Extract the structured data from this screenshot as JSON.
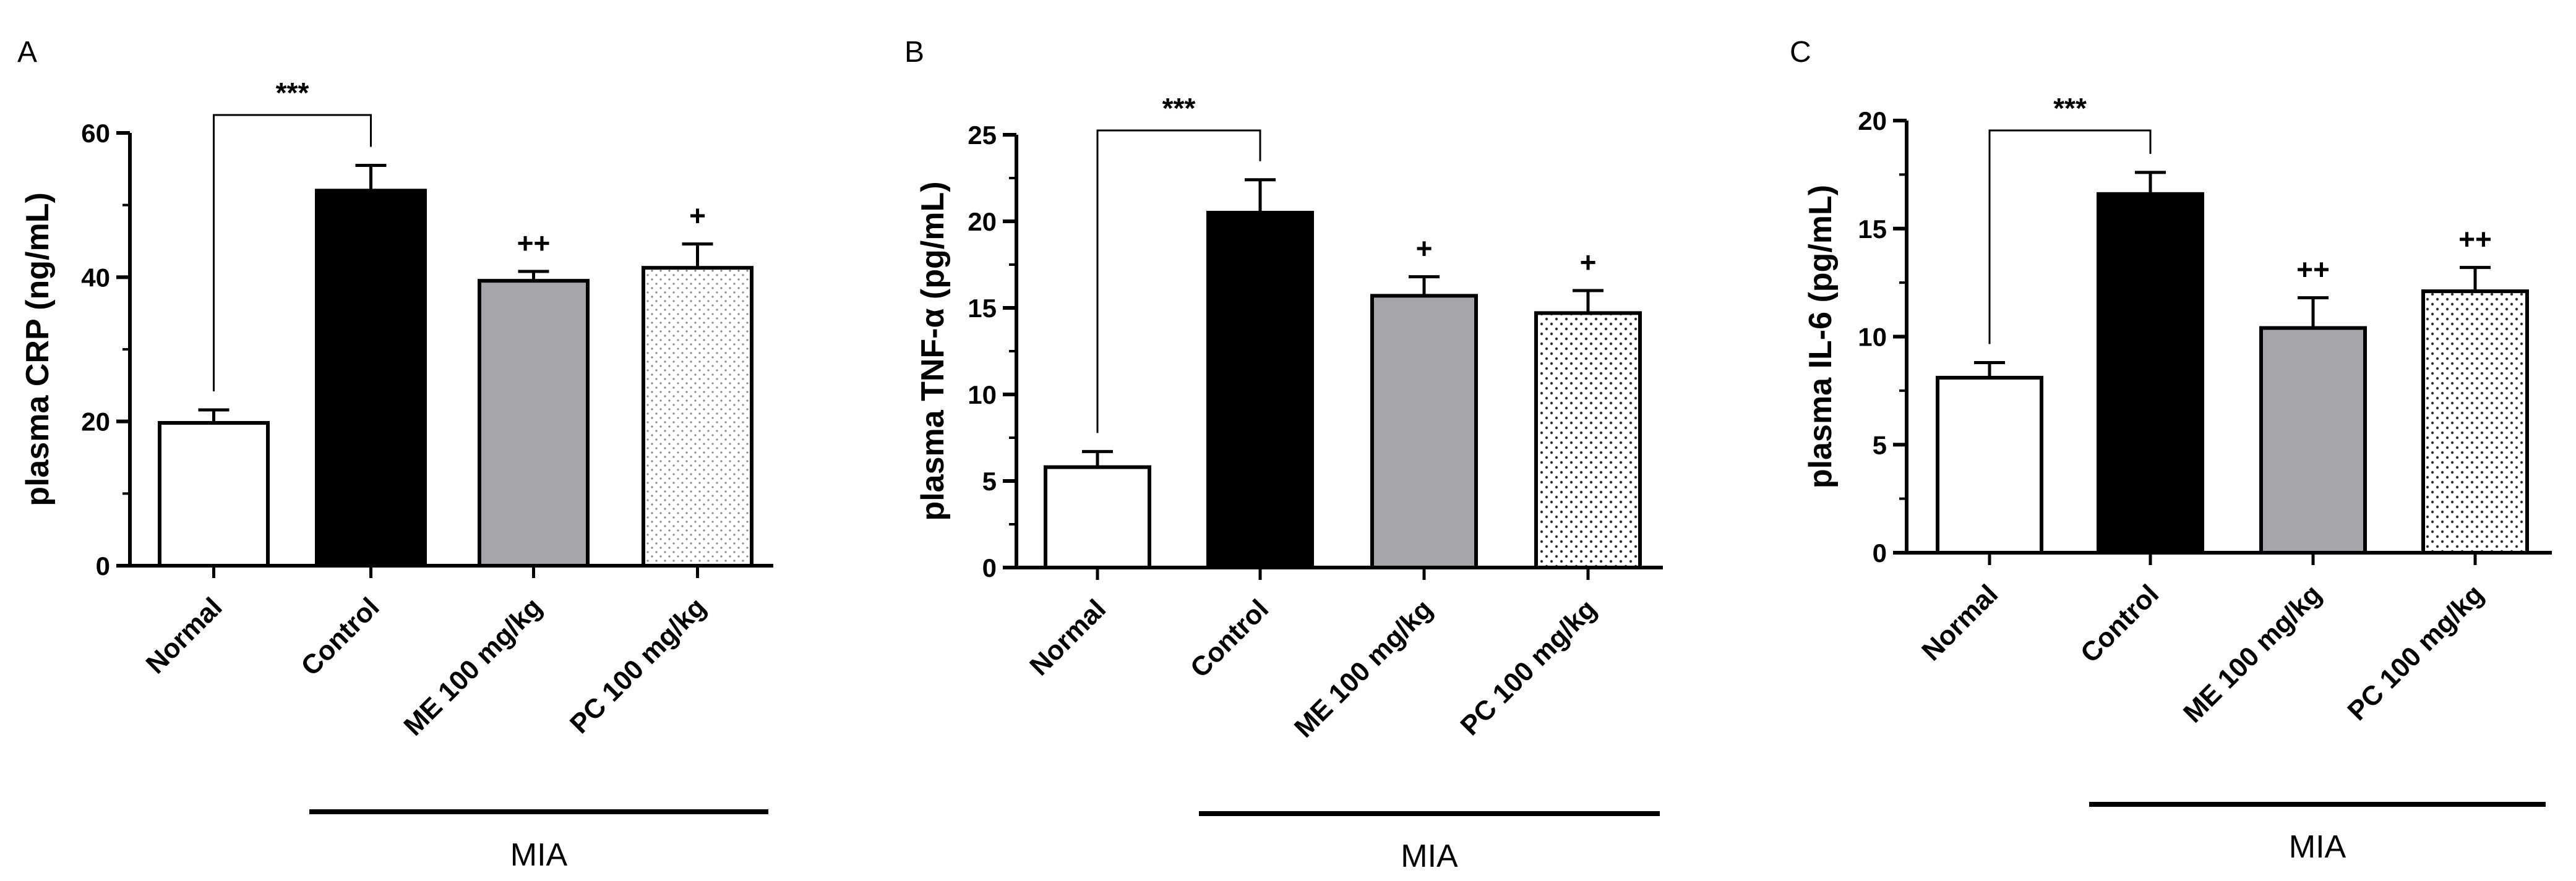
{
  "chart_data": [
    {
      "type": "bar",
      "panel": "A",
      "ylabel": "plasma CRP (ng/mL)",
      "ylim": [
        0,
        60
      ],
      "yticks": [
        0,
        20,
        40,
        60
      ],
      "categories": [
        "Normal",
        "Control",
        "ME 100 mg/kg",
        "PC 100 mg/kg"
      ],
      "values": [
        19.8,
        52.0,
        39.5,
        41.3
      ],
      "errors": [
        1.8,
        3.5,
        1.3,
        3.3
      ],
      "fills": [
        "white",
        "black",
        "gray",
        "dots"
      ],
      "significance": {
        "comparison": [
          "Normal",
          "Control"
        ],
        "label": "***"
      },
      "annotations": [
        "",
        "",
        "++",
        "+"
      ],
      "group": {
        "label": "MIA",
        "categories": [
          "Control",
          "ME 100 mg/kg",
          "PC 100 mg/kg"
        ]
      },
      "grid": false
    },
    {
      "type": "bar",
      "panel": "B",
      "ylabel": "plasma TNF-α (pg/mL)",
      "ylim": [
        0,
        25
      ],
      "yticks": [
        0,
        5,
        10,
        15,
        20,
        25
      ],
      "categories": [
        "Normal",
        "Control",
        "ME 100 mg/kg",
        "PC 100 mg/kg"
      ],
      "values": [
        5.8,
        20.5,
        15.7,
        14.7
      ],
      "errors": [
        0.9,
        1.9,
        1.1,
        1.3
      ],
      "fills": [
        "white",
        "black",
        "gray",
        "dots"
      ],
      "significance": {
        "comparison": [
          "Normal",
          "Control"
        ],
        "label": "***"
      },
      "annotations": [
        "",
        "",
        "+",
        "+"
      ],
      "group": {
        "label": "MIA",
        "categories": [
          "Control",
          "ME 100 mg/kg",
          "PC 100 mg/kg"
        ]
      },
      "grid": false
    },
    {
      "type": "bar",
      "panel": "C",
      "ylabel": "plasma IL-6 (pg/mL)",
      "ylim": [
        0,
        20
      ],
      "yticks": [
        0,
        5,
        10,
        15,
        20
      ],
      "categories": [
        "Normal",
        "Control",
        "ME 100 mg/kg",
        "PC 100 mg/kg"
      ],
      "values": [
        8.1,
        16.6,
        10.4,
        12.1
      ],
      "errors": [
        0.7,
        1.0,
        1.4,
        1.1
      ],
      "fills": [
        "white",
        "black",
        "gray",
        "dots"
      ],
      "significance": {
        "comparison": [
          "Normal",
          "Control"
        ],
        "label": "***"
      },
      "annotations": [
        "",
        "",
        "++",
        "++"
      ],
      "group": {
        "label": "MIA",
        "categories": [
          "Control",
          "ME 100 mg/kg",
          "PC 100 mg/kg"
        ]
      },
      "grid": false
    }
  ],
  "colors": {
    "control_fill": "#000000",
    "me_fill": "#a6a6aa",
    "normal_fill": "#ffffff",
    "pc_fill": "#ffffff",
    "pc_dots": "#555555",
    "axis": "#000000"
  }
}
